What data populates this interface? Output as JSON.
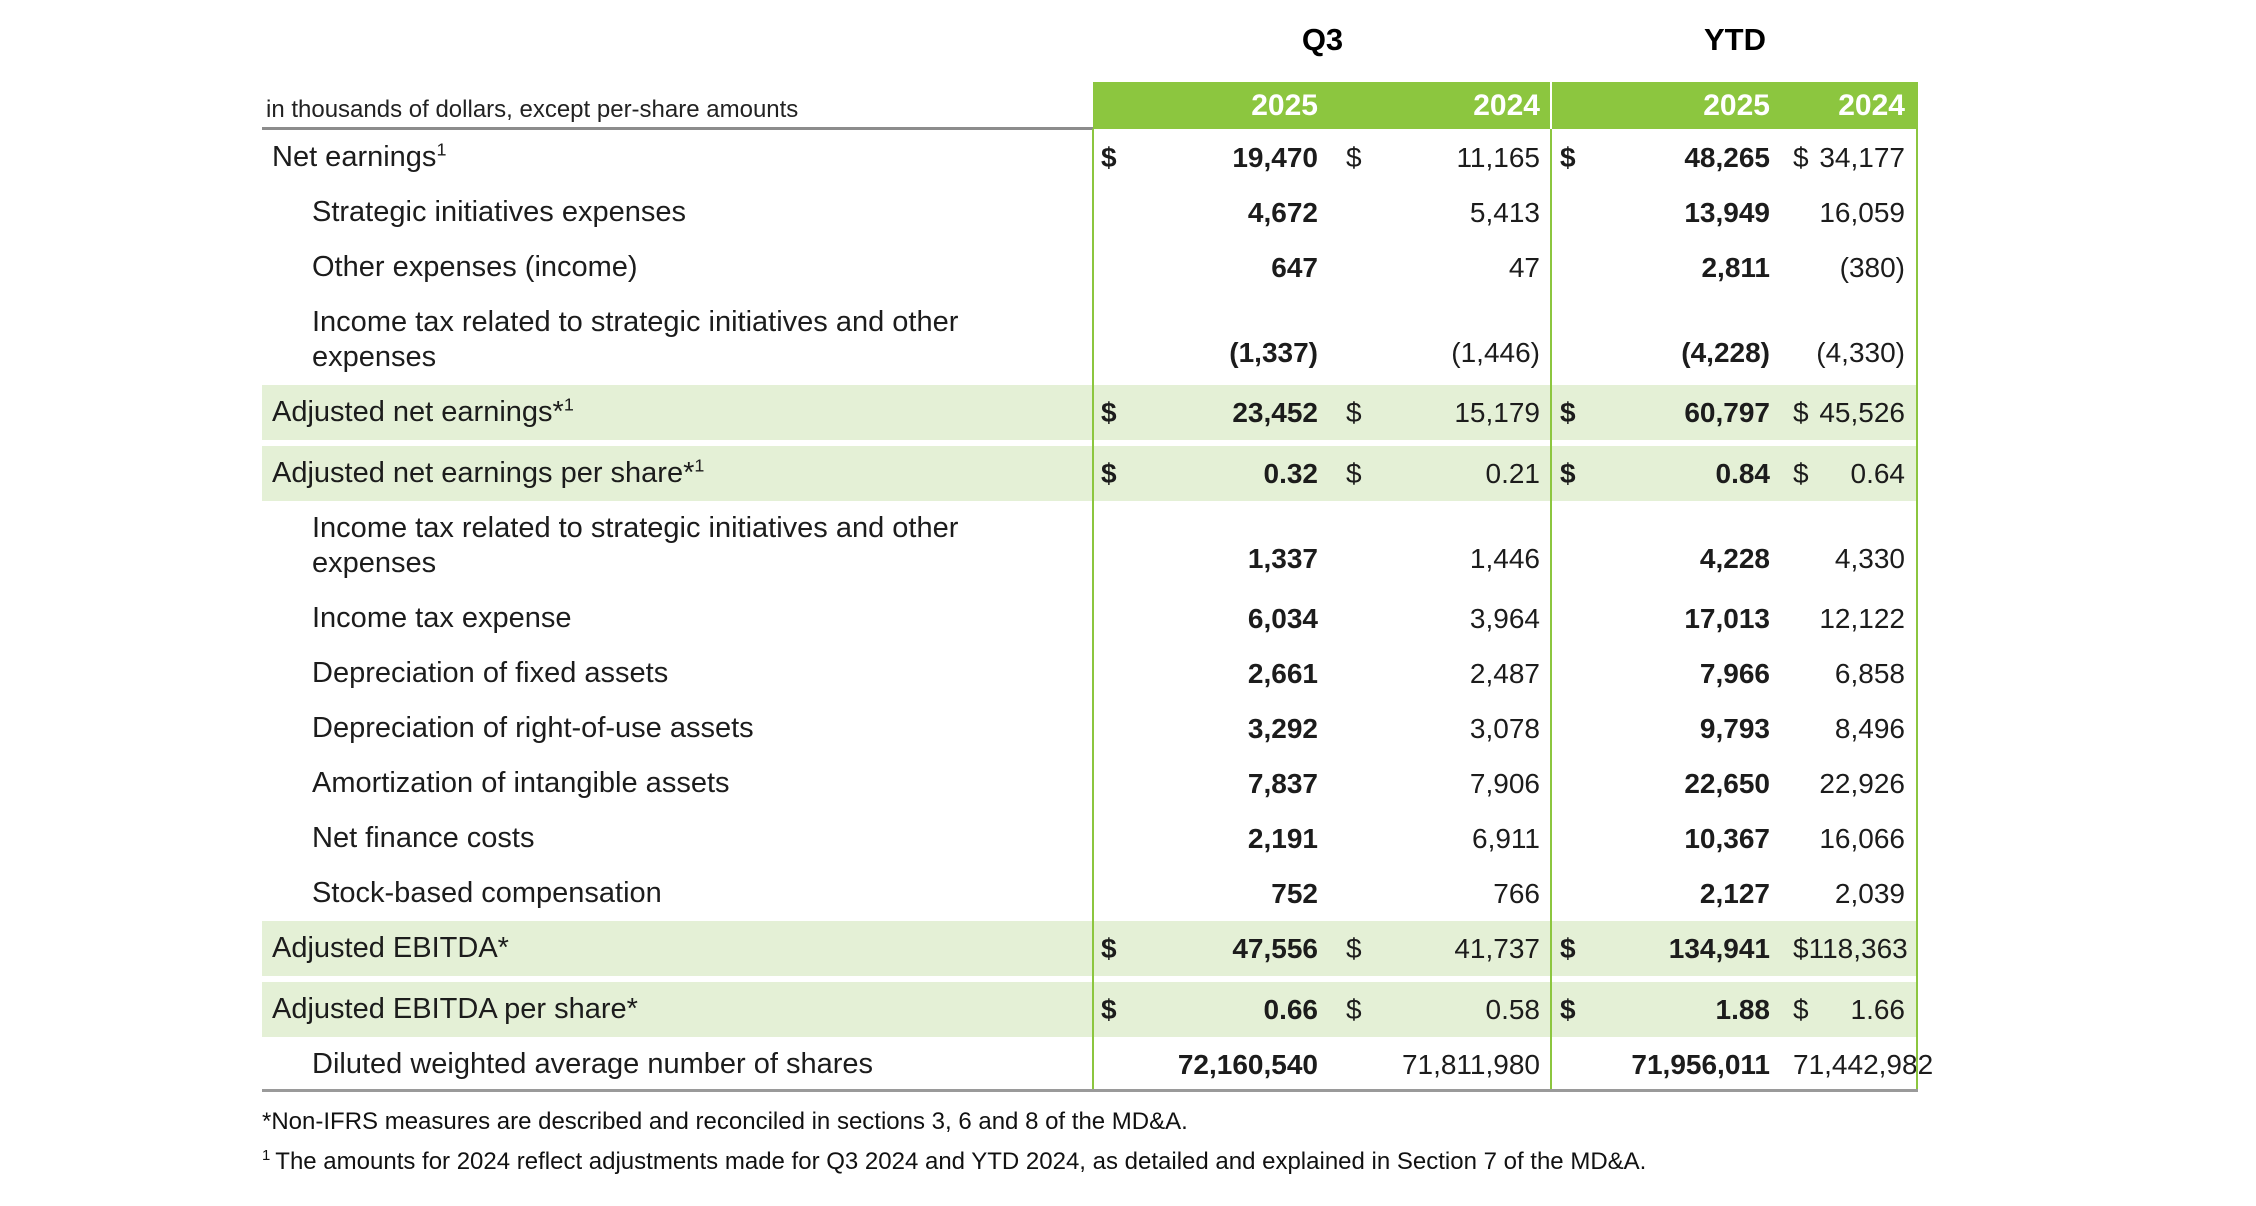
{
  "table": {
    "group_headers": [
      {
        "label": "Q3"
      },
      {
        "label": "YTD"
      }
    ],
    "unit_note": "in thousands of dollars, except per-share amounts",
    "year_columns": [
      "2025",
      "2024",
      "2025",
      "2024"
    ],
    "rows": [
      {
        "label": "Net earnings",
        "sup": "1",
        "indent": false,
        "dollar": true,
        "highlight": false,
        "tall": false,
        "gap_after": false,
        "values": [
          "19,470",
          "11,165",
          "48,265",
          "34,177"
        ]
      },
      {
        "label": "Strategic initiatives expenses",
        "sup": "",
        "indent": true,
        "dollar": false,
        "highlight": false,
        "tall": false,
        "gap_after": false,
        "values": [
          "4,672",
          "5,413",
          "13,949",
          "16,059"
        ]
      },
      {
        "label": "Other expenses (income)",
        "sup": "",
        "indent": true,
        "dollar": false,
        "highlight": false,
        "tall": false,
        "gap_after": false,
        "values": [
          "647",
          "47",
          "2,811",
          "(380)"
        ]
      },
      {
        "label": "Income tax related to strategic initiatives and other\nexpenses",
        "sup": "",
        "indent": true,
        "dollar": false,
        "highlight": false,
        "tall": true,
        "gap_after": false,
        "values": [
          "(1,337)",
          "(1,446)",
          "(4,228)",
          "(4,330)"
        ]
      },
      {
        "label": "Adjusted net earnings*",
        "sup": "1",
        "indent": false,
        "dollar": true,
        "highlight": true,
        "tall": false,
        "gap_after": true,
        "values": [
          "23,452",
          "15,179",
          "60,797",
          "45,526"
        ]
      },
      {
        "label": "Adjusted net earnings per share*",
        "sup": "1",
        "indent": false,
        "dollar": true,
        "highlight": true,
        "tall": false,
        "gap_after": false,
        "values": [
          "0.32",
          "0.21",
          "0.84",
          "0.64"
        ]
      },
      {
        "label": "Income tax related to strategic initiatives and other\nexpenses",
        "sup": "",
        "indent": true,
        "dollar": false,
        "highlight": false,
        "tall": true,
        "gap_after": false,
        "values": [
          "1,337",
          "1,446",
          "4,228",
          "4,330"
        ]
      },
      {
        "label": "Income tax expense",
        "sup": "",
        "indent": true,
        "dollar": false,
        "highlight": false,
        "tall": false,
        "gap_after": false,
        "values": [
          "6,034",
          "3,964",
          "17,013",
          "12,122"
        ]
      },
      {
        "label": "Depreciation of fixed assets",
        "sup": "",
        "indent": true,
        "dollar": false,
        "highlight": false,
        "tall": false,
        "gap_after": false,
        "values": [
          "2,661",
          "2,487",
          "7,966",
          "6,858"
        ]
      },
      {
        "label": "Depreciation of right-of-use assets",
        "sup": "",
        "indent": true,
        "dollar": false,
        "highlight": false,
        "tall": false,
        "gap_after": false,
        "values": [
          "3,292",
          "3,078",
          "9,793",
          "8,496"
        ]
      },
      {
        "label": "Amortization of intangible assets",
        "sup": "",
        "indent": true,
        "dollar": false,
        "highlight": false,
        "tall": false,
        "gap_after": false,
        "values": [
          "7,837",
          "7,906",
          "22,650",
          "22,926"
        ]
      },
      {
        "label": "Net finance costs",
        "sup": "",
        "indent": true,
        "dollar": false,
        "highlight": false,
        "tall": false,
        "gap_after": false,
        "values": [
          "2,191",
          "6,911",
          "10,367",
          "16,066"
        ]
      },
      {
        "label": "Stock-based compensation",
        "sup": "",
        "indent": true,
        "dollar": false,
        "highlight": false,
        "tall": false,
        "gap_after": false,
        "values": [
          "752",
          "766",
          "2,127",
          "2,039"
        ]
      },
      {
        "label": "Adjusted EBITDA*",
        "sup": "",
        "indent": false,
        "dollar": true,
        "highlight": true,
        "tall": false,
        "gap_after": true,
        "values": [
          "47,556",
          "41,737",
          "134,941",
          "118,363"
        ]
      },
      {
        "label": "Adjusted EBITDA per share*",
        "sup": "",
        "indent": false,
        "dollar": true,
        "highlight": true,
        "tall": false,
        "gap_after": false,
        "values": [
          "0.66",
          "0.58",
          "1.88",
          "1.66"
        ]
      },
      {
        "label": "Diluted weighted average number of shares",
        "sup": "",
        "indent": true,
        "dollar": false,
        "highlight": false,
        "tall": false,
        "gap_after": false,
        "values": [
          "72,160,540",
          "71,811,980",
          "71,956,011",
          "71,442,982"
        ]
      }
    ],
    "footnotes": [
      {
        "marker": "*",
        "text": "Non-IFRS measures are described and reconciled in sections 3, 6 and 8 of the MD&A."
      },
      {
        "marker": "1",
        "text": "The amounts for 2024 reflect adjustments made for Q3 2024 and YTD 2024, as detailed and explained in Section 7 of the MD&A."
      }
    ],
    "colors": {
      "header_green": "#8CC63F",
      "row_highlight": "#E4F0D6",
      "grid_green": "#8CC63F",
      "rule_gray": "#8C8C8C"
    }
  }
}
